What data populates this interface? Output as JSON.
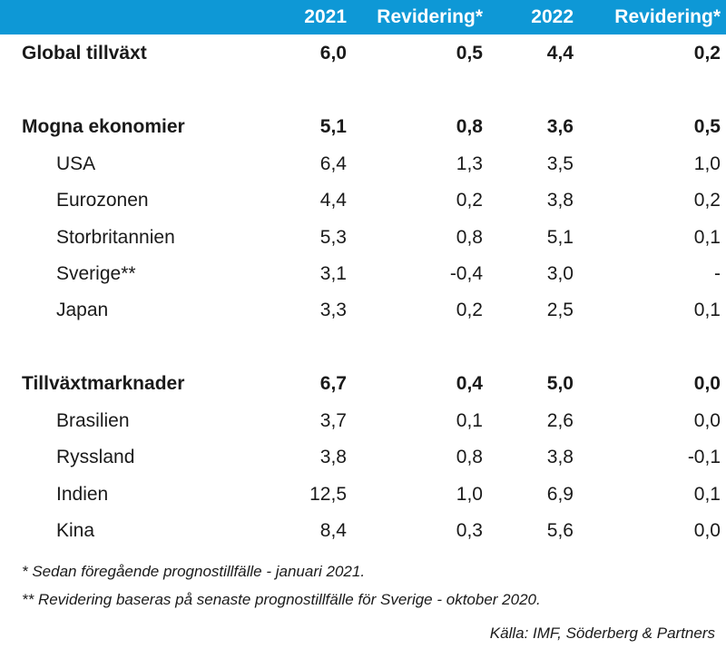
{
  "table": {
    "header": {
      "col1": "2021",
      "col2": "Revidering*",
      "col3": "2022",
      "col4": "Revidering*"
    },
    "rows": [
      {
        "label": "Global tillväxt",
        "v2021": "6,0",
        "rev2021": "0,5",
        "v2022": "4,4",
        "rev2022": "0,2"
      },
      {
        "label": "Mogna ekonomier",
        "v2021": "5,1",
        "rev2021": "0,8",
        "v2022": "3,6",
        "rev2022": "0,5"
      },
      {
        "label": "USA",
        "v2021": "6,4",
        "rev2021": "1,3",
        "v2022": "3,5",
        "rev2022": "1,0"
      },
      {
        "label": "Eurozonen",
        "v2021": "4,4",
        "rev2021": "0,2",
        "v2022": "3,8",
        "rev2022": "0,2"
      },
      {
        "label": "Storbritannien",
        "v2021": "5,3",
        "rev2021": "0,8",
        "v2022": "5,1",
        "rev2022": "0,1"
      },
      {
        "label": "Sverige**",
        "v2021": "3,1",
        "rev2021": "-0,4",
        "v2022": "3,0",
        "rev2022": "-"
      },
      {
        "label": "Japan",
        "v2021": "3,3",
        "rev2021": "0,2",
        "v2022": "2,5",
        "rev2022": "0,1"
      },
      {
        "label": "Tillväxtmarknader",
        "v2021": "6,7",
        "rev2021": "0,4",
        "v2022": "5,0",
        "rev2022": "0,0"
      },
      {
        "label": "Brasilien",
        "v2021": "3,7",
        "rev2021": "0,1",
        "v2022": "2,6",
        "rev2022": "0,0"
      },
      {
        "label": "Ryssland",
        "v2021": "3,8",
        "rev2021": "0,8",
        "v2022": "3,8",
        "rev2022": "-0,1"
      },
      {
        "label": "Indien",
        "v2021": "12,5",
        "rev2021": "1,0",
        "v2022": "6,9",
        "rev2022": "0,1"
      },
      {
        "label": "Kina",
        "v2021": "8,4",
        "rev2021": "0,3",
        "v2022": "5,6",
        "rev2022": "0,0"
      }
    ]
  },
  "footnotes": {
    "note1": "* Sedan föregående prognostillfälle - januari 2021.",
    "note2": "**  Revidering baseras på senaste prognostillfälle för Sverige - oktober 2020.",
    "source": "Källa: IMF, Söderberg & Partners"
  },
  "colors": {
    "header_bg": "#0e98d6",
    "header_text": "#ffffff",
    "body_text": "#1a1a1a"
  },
  "chart_data": {
    "type": "table",
    "columns": [
      "",
      "2021",
      "Revidering*",
      "2022",
      "Revidering*"
    ],
    "rows": [
      [
        "Global tillväxt",
        6.0,
        0.5,
        4.4,
        0.2
      ],
      [
        "Mogna ekonomier",
        5.1,
        0.8,
        3.6,
        0.5
      ],
      [
        "USA",
        6.4,
        1.3,
        3.5,
        1.0
      ],
      [
        "Eurozonen",
        4.4,
        0.2,
        3.8,
        0.2
      ],
      [
        "Storbritannien",
        5.3,
        0.8,
        5.1,
        0.1
      ],
      [
        "Sverige**",
        3.1,
        -0.4,
        3.0,
        null
      ],
      [
        "Japan",
        3.3,
        0.2,
        2.5,
        0.1
      ],
      [
        "Tillväxtmarknader",
        6.7,
        0.4,
        5.0,
        0.0
      ],
      [
        "Brasilien",
        3.7,
        0.1,
        2.6,
        0.0
      ],
      [
        "Ryssland",
        3.8,
        0.8,
        3.8,
        -0.1
      ],
      [
        "Indien",
        12.5,
        1.0,
        6.9,
        0.1
      ],
      [
        "Kina",
        8.4,
        0.3,
        5.6,
        0.0
      ]
    ]
  }
}
